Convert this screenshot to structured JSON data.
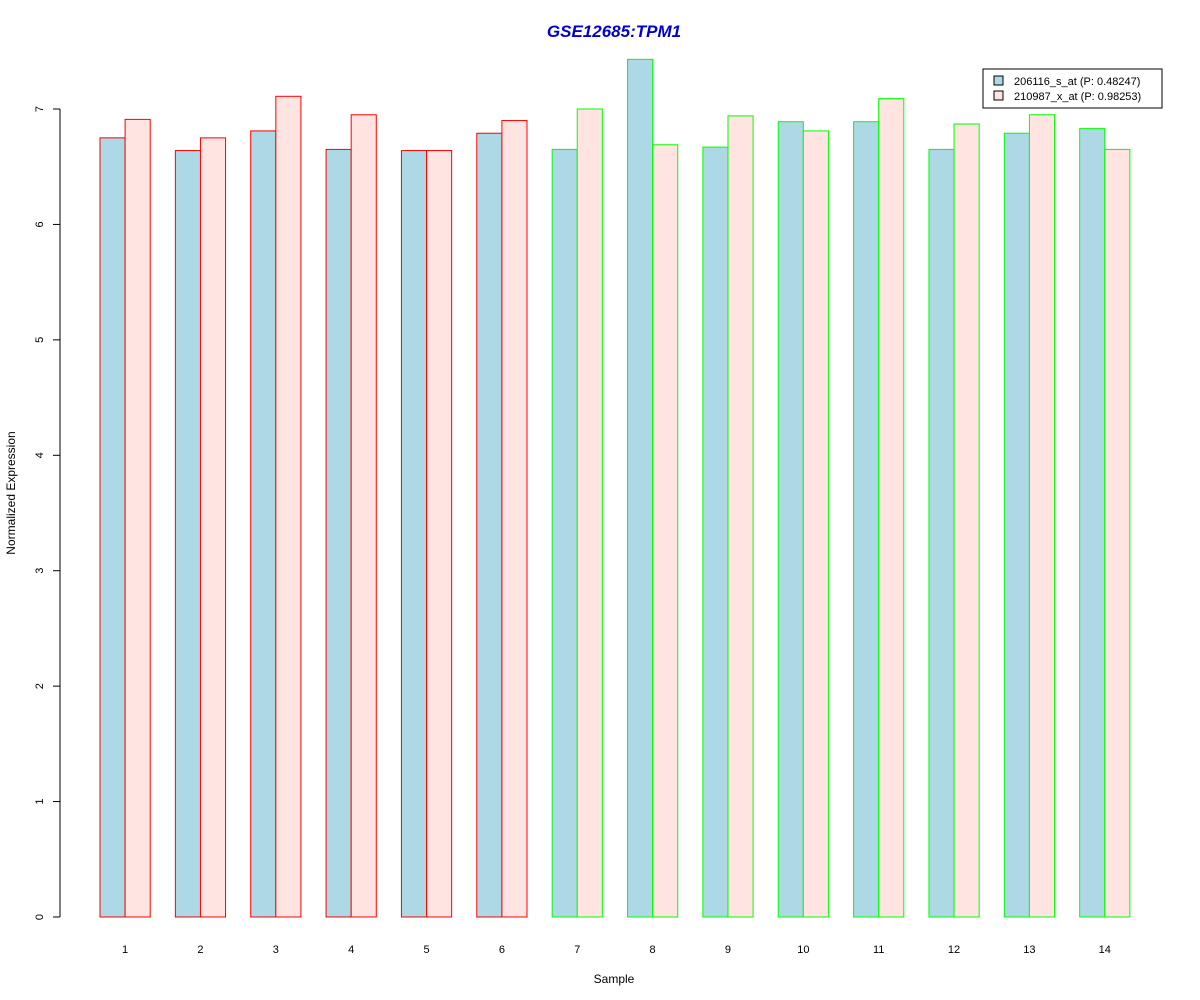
{
  "chart_data": {
    "type": "bar",
    "title": "GSE12685:TPM1",
    "xlabel": "Sample",
    "ylabel": "Normalized Expression",
    "ylim": [
      0,
      7.5
    ],
    "yticks": [
      "0",
      "1",
      "2",
      "3",
      "4",
      "5",
      "6",
      "7"
    ],
    "categories": [
      "1",
      "2",
      "3",
      "4",
      "5",
      "6",
      "7",
      "8",
      "9",
      "10",
      "11",
      "12",
      "13",
      "14"
    ],
    "grid": false,
    "legend_position": "top-right",
    "series": [
      {
        "name": "206116_s_at (P: 0.48247)",
        "fill": "#add8e6",
        "values": [
          6.75,
          6.64,
          6.81,
          6.65,
          6.64,
          6.79,
          6.65,
          7.43,
          6.67,
          6.89,
          6.89,
          6.65,
          6.79,
          6.83
        ]
      },
      {
        "name": "210987_x_at (P: 0.98253)",
        "fill": "#ffe4e1",
        "values": [
          6.91,
          6.75,
          7.11,
          6.95,
          6.64,
          6.9,
          7.0,
          6.69,
          6.94,
          6.81,
          7.09,
          6.87,
          6.95,
          6.65
        ]
      }
    ],
    "group_colors": [
      "#ff0000",
      "#ff0000",
      "#ff0000",
      "#ff0000",
      "#ff0000",
      "#ff0000",
      "#00ff00",
      "#00ff00",
      "#00ff00",
      "#00ff00",
      "#00ff00",
      "#00ff00",
      "#00ff00",
      "#00ff00"
    ],
    "title_color": "#0000cd"
  }
}
